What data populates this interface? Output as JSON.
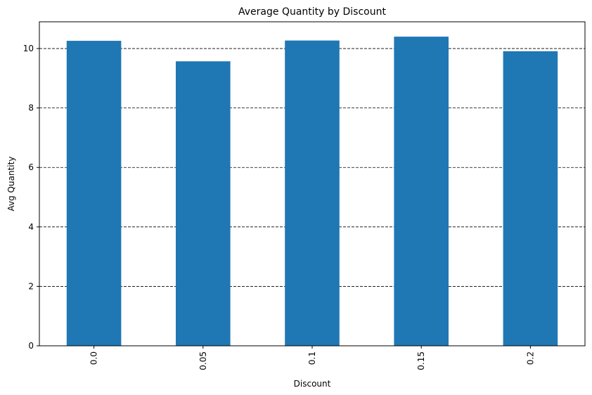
{
  "chart_data": {
    "type": "bar",
    "title": "Average Quantity by Discount",
    "xlabel": "Discount",
    "ylabel": "Avg Quantity",
    "categories": [
      "0.0",
      "0.05",
      "0.1",
      "0.15",
      "0.2"
    ],
    "values": [
      10.26,
      9.57,
      10.27,
      10.4,
      9.91
    ],
    "ylim": [
      0,
      10.9
    ],
    "yticks": [
      0,
      2,
      4,
      6,
      8,
      10
    ],
    "grid": "y-dashed",
    "bar_color": "#1f77b4"
  }
}
